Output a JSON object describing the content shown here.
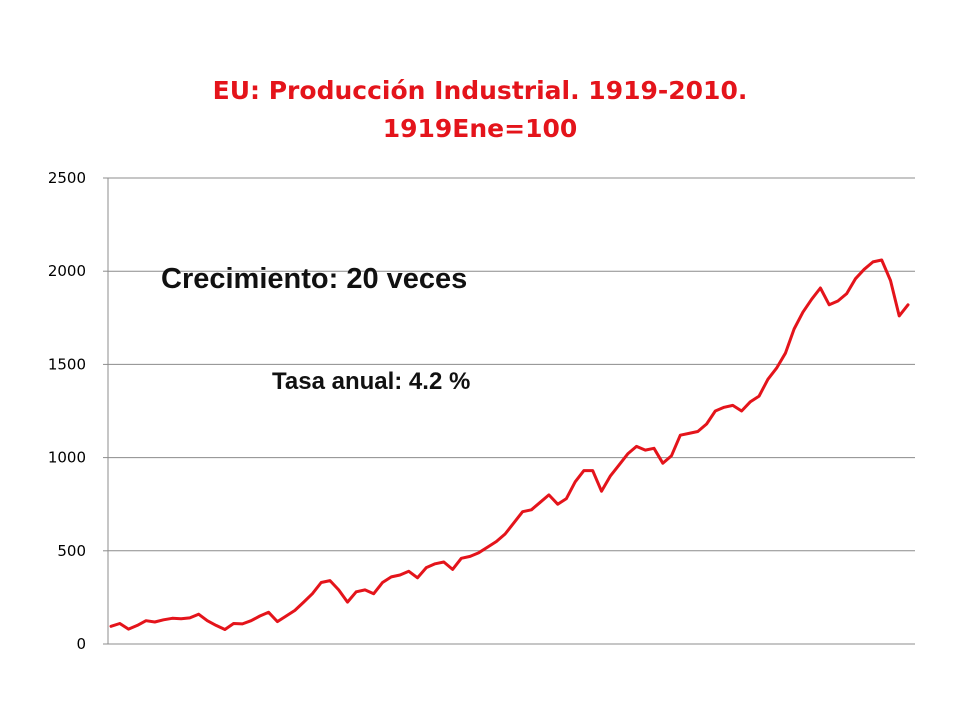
{
  "chart_data": {
    "type": "line",
    "title": "EU: Producción Industrial. 1919-2010.",
    "subtitle": "1919Ene=100",
    "xlabel": "",
    "ylabel": "",
    "x_range": [
      1919,
      2010
    ],
    "ylim": [
      0,
      2500
    ],
    "yticks": [
      "0",
      "500",
      "1000",
      "1500",
      "2000",
      "2500"
    ],
    "grid": true,
    "legend": "none",
    "annotations": [
      "Crecimiento: 20 veces",
      "Tasa anual: 4.2 %"
    ],
    "series_color": "#e4141b",
    "series": [
      {
        "x": [
          1919,
          1920,
          1921,
          1922,
          1923,
          1924,
          1925,
          1926,
          1927,
          1928,
          1929,
          1930,
          1931,
          1932,
          1933,
          1934,
          1935,
          1936,
          1937,
          1938,
          1939,
          1940,
          1941,
          1942,
          1943,
          1944,
          1945,
          1946,
          1947,
          1948,
          1949,
          1950,
          1951,
          1952,
          1953,
          1954,
          1955,
          1956,
          1957,
          1958,
          1959,
          1960,
          1961,
          1962,
          1963,
          1964,
          1965,
          1966,
          1967,
          1968,
          1969,
          1970,
          1971,
          1972,
          1973,
          1974,
          1975,
          1976,
          1977,
          1978,
          1979,
          1980,
          1981,
          1982,
          1983,
          1984,
          1985,
          1986,
          1987,
          1988,
          1989,
          1990,
          1991,
          1992,
          1993,
          1994,
          1995,
          1996,
          1997,
          1998,
          1999,
          2000,
          2001,
          2002,
          2003,
          2004,
          2005,
          2006,
          2007,
          2008,
          2009,
          2010
        ],
        "values": [
          95,
          110,
          80,
          100,
          125,
          118,
          130,
          138,
          135,
          140,
          160,
          125,
          100,
          78,
          110,
          108,
          125,
          150,
          170,
          120,
          150,
          180,
          225,
          270,
          330,
          340,
          290,
          225,
          280,
          290,
          270,
          330,
          360,
          370,
          390,
          355,
          410,
          430,
          440,
          400,
          460,
          470,
          490,
          520,
          550,
          590,
          650,
          710,
          720,
          760,
          800,
          750,
          780,
          870,
          930,
          930,
          820,
          900,
          960,
          1020,
          1060,
          1040,
          1050,
          970,
          1010,
          1120,
          1130,
          1140,
          1180,
          1250,
          1270,
          1280,
          1250,
          1300,
          1330,
          1420,
          1480,
          1560,
          1690,
          1780,
          1850,
          1910,
          1820,
          1840,
          1880,
          1960,
          2010,
          2050,
          2060,
          1950,
          1760,
          1820
        ]
      }
    ]
  }
}
